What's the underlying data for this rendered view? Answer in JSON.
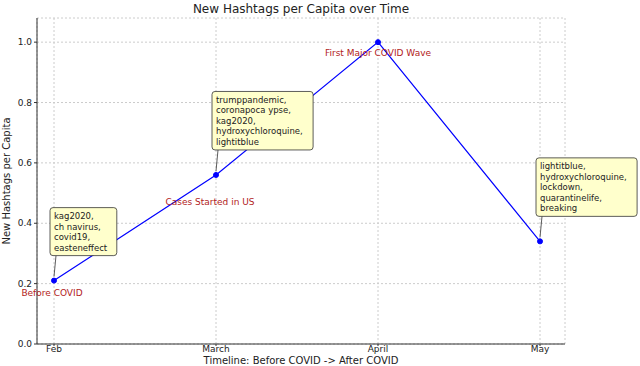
{
  "chart_data": {
    "type": "line",
    "title": "New Hashtags per Capita over Time",
    "x_label": "Timeline: Before COVID -> After COVID",
    "y_label": "New Hashtags per Capita",
    "categories": [
      "Feb",
      "March",
      "April",
      "May"
    ],
    "values": [
      0.21,
      0.56,
      1.0,
      0.34
    ],
    "color": "#0000ff",
    "marker": "o",
    "ylim": [
      0,
      1.08
    ],
    "yticks": [
      {
        "value": 0,
        "label": "0.0"
      },
      0.2,
      0.4,
      0.6,
      0.8,
      {
        "value": 1,
        "label": "1.0"
      }
    ],
    "grid": true,
    "annotations": [
      [
        "kag2020,",
        "ch navirus,",
        "covid19,",
        "easteneffect"
      ],
      [
        "trumppandemic,",
        "coronapoca ypse,",
        "kag2020,",
        "hydroxychloroquine,",
        "lightitblue"
      ],
      null,
      [
        "lightitblue,",
        "hydroxychloroquine,",
        "lockdown,",
        "quarantinelife,",
        "breaking"
      ]
    ],
    "point_labels": [
      "Before COVID",
      "Cases Started in US",
      "First Major COVID Wave",
      null
    ]
  }
}
